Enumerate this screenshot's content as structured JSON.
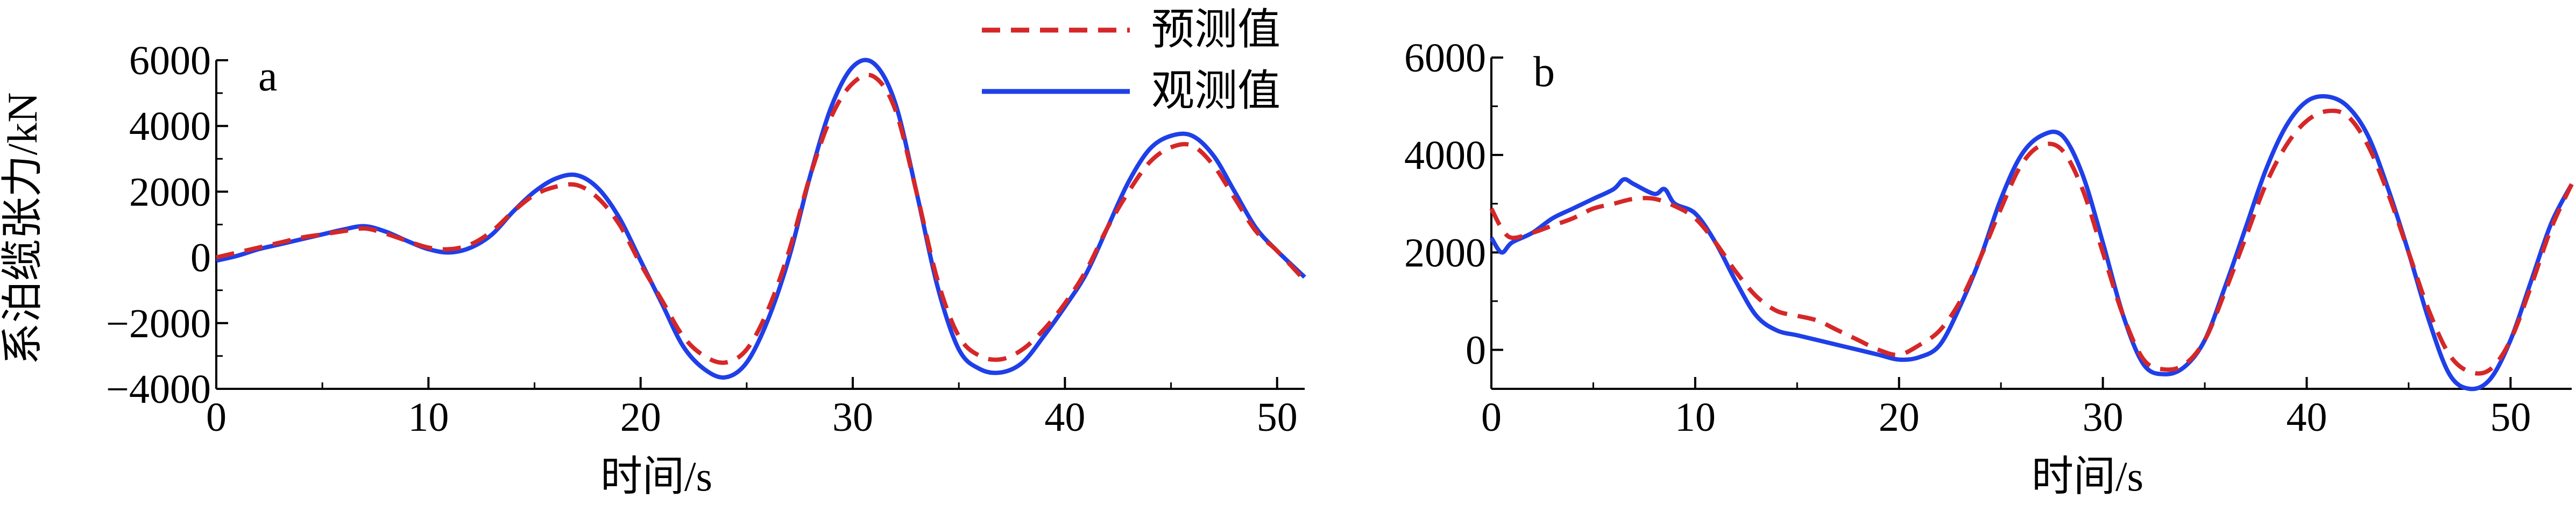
{
  "figure": {
    "ylabel": "系泊缆张力/kN",
    "legend": [
      {
        "label": "预测值",
        "color": "#d62728",
        "style": "dashed"
      },
      {
        "label": "观测值",
        "color": "#1f3fe8",
        "style": "solid"
      }
    ]
  },
  "chart_data": [
    {
      "type": "line",
      "panel_label": "a",
      "xlabel": "时间/s",
      "ylabel": "系泊缆张力/kN",
      "xlim": [
        0,
        51.3
      ],
      "ylim": [
        -4000,
        6000
      ],
      "xticks": [
        0,
        10,
        20,
        30,
        40,
        50
      ],
      "yticks": [
        -4000,
        -2000,
        0,
        2000,
        4000,
        6000
      ],
      "grid": false,
      "legend_position": "top-right",
      "series": [
        {
          "name": "预测值",
          "color": "#d62728",
          "style": "dashed",
          "x": [
            0,
            1,
            2,
            3,
            4,
            5,
            6,
            7,
            8,
            9,
            10,
            11,
            12,
            13,
            14,
            15,
            16,
            17,
            18,
            19,
            20,
            21,
            22,
            23,
            24,
            25,
            26,
            27,
            28,
            29,
            30,
            31,
            32,
            33,
            34,
            35,
            36,
            37,
            38,
            39,
            40,
            41,
            42,
            43,
            44,
            45,
            46,
            47,
            48,
            49,
            50,
            51.3
          ],
          "y": [
            0,
            150,
            300,
            450,
            600,
            700,
            800,
            880,
            720,
            500,
            300,
            250,
            400,
            800,
            1400,
            1900,
            2150,
            2200,
            1800,
            1000,
            -200,
            -1300,
            -2400,
            -3000,
            -3200,
            -2800,
            -1600,
            200,
            2500,
            4300,
            5300,
            5500,
            4500,
            2000,
            -700,
            -2400,
            -3000,
            -3100,
            -2800,
            -2200,
            -1400,
            -400,
            900,
            2000,
            2900,
            3350,
            3400,
            2800,
            1800,
            800,
            200,
            -700
          ]
        },
        {
          "name": "观测值",
          "color": "#1f3fe8",
          "style": "solid",
          "x": [
            0,
            1,
            2,
            3,
            4,
            5,
            6,
            7,
            8,
            9,
            10,
            11,
            12,
            13,
            14,
            15,
            16,
            17,
            18,
            19,
            20,
            21,
            22,
            23,
            24,
            25,
            26,
            27,
            28,
            29,
            30,
            31,
            32,
            33,
            34,
            35,
            36,
            37,
            38,
            39,
            40,
            41,
            42,
            43,
            44,
            45,
            46,
            47,
            48,
            49,
            50,
            51.3
          ],
          "y": [
            -100,
            50,
            250,
            400,
            550,
            700,
            850,
            950,
            780,
            500,
            250,
            150,
            300,
            700,
            1400,
            2000,
            2400,
            2500,
            2100,
            1200,
            -100,
            -1400,
            -2700,
            -3400,
            -3650,
            -3200,
            -1900,
            0,
            2500,
            4600,
            5800,
            5900,
            4700,
            2000,
            -900,
            -2800,
            -3400,
            -3500,
            -3200,
            -2400,
            -1500,
            -500,
            900,
            2300,
            3300,
            3700,
            3700,
            3100,
            2000,
            900,
            200,
            -600
          ]
        }
      ]
    },
    {
      "type": "line",
      "panel_label": "b",
      "xlabel": "时间/s",
      "ylabel": "",
      "xlim": [
        0,
        53
      ],
      "ylim": [
        -800,
        6000
      ],
      "xticks": [
        0,
        10,
        20,
        30,
        40,
        50
      ],
      "yticks": [
        0,
        2000,
        4000,
        6000
      ],
      "grid": false,
      "series": [
        {
          "name": "预测值",
          "color": "#d62728",
          "style": "dashed",
          "x": [
            0,
            0.5,
            1,
            2,
            3,
            4,
            5,
            6,
            7,
            8,
            9,
            10,
            11,
            12,
            13,
            14,
            15,
            16,
            17,
            18,
            19,
            20,
            21,
            22,
            23,
            24,
            25,
            26,
            27,
            28,
            29,
            30,
            31,
            32,
            33,
            34,
            35,
            36,
            37,
            38,
            39,
            40,
            41,
            42,
            43,
            44,
            45,
            46,
            47,
            48,
            49,
            50,
            51,
            52,
            53
          ],
          "y": [
            2900,
            2500,
            2300,
            2400,
            2550,
            2700,
            2900,
            3000,
            3100,
            3100,
            2950,
            2700,
            2200,
            1600,
            1100,
            800,
            700,
            600,
            400,
            200,
            0,
            -100,
            100,
            400,
            1000,
            1900,
            2900,
            3800,
            4200,
            4100,
            3300,
            2000,
            700,
            -200,
            -400,
            -300,
            200,
            1200,
            2300,
            3400,
            4200,
            4700,
            4900,
            4800,
            4200,
            3200,
            2000,
            800,
            -100,
            -450,
            -400,
            200,
            1300,
            2500,
            3400
          ]
        },
        {
          "name": "观测值",
          "color": "#1f3fe8",
          "style": "solid",
          "x": [
            0,
            0.5,
            1,
            2,
            3,
            4,
            5,
            6,
            6.5,
            7,
            8,
            8.5,
            9,
            10,
            11,
            12,
            13,
            14,
            15,
            16,
            17,
            18,
            19,
            20,
            21,
            22,
            23,
            24,
            25,
            26,
            27,
            28,
            29,
            30,
            31,
            32,
            33,
            34,
            35,
            36,
            37,
            38,
            39,
            40,
            41,
            42,
            43,
            44,
            45,
            46,
            47,
            48,
            49,
            50,
            51,
            52,
            53
          ],
          "y": [
            2300,
            2000,
            2200,
            2400,
            2700,
            2900,
            3100,
            3300,
            3500,
            3400,
            3200,
            3300,
            3000,
            2800,
            2200,
            1400,
            700,
            400,
            300,
            200,
            100,
            0,
            -100,
            -200,
            -150,
            100,
            900,
            1900,
            3100,
            4000,
            4400,
            4400,
            3600,
            2200,
            700,
            -300,
            -500,
            -350,
            200,
            1300,
            2500,
            3700,
            4600,
            5100,
            5200,
            5000,
            4400,
            3300,
            2000,
            600,
            -500,
            -800,
            -600,
            200,
            1400,
            2600,
            3400
          ]
        }
      ]
    }
  ]
}
